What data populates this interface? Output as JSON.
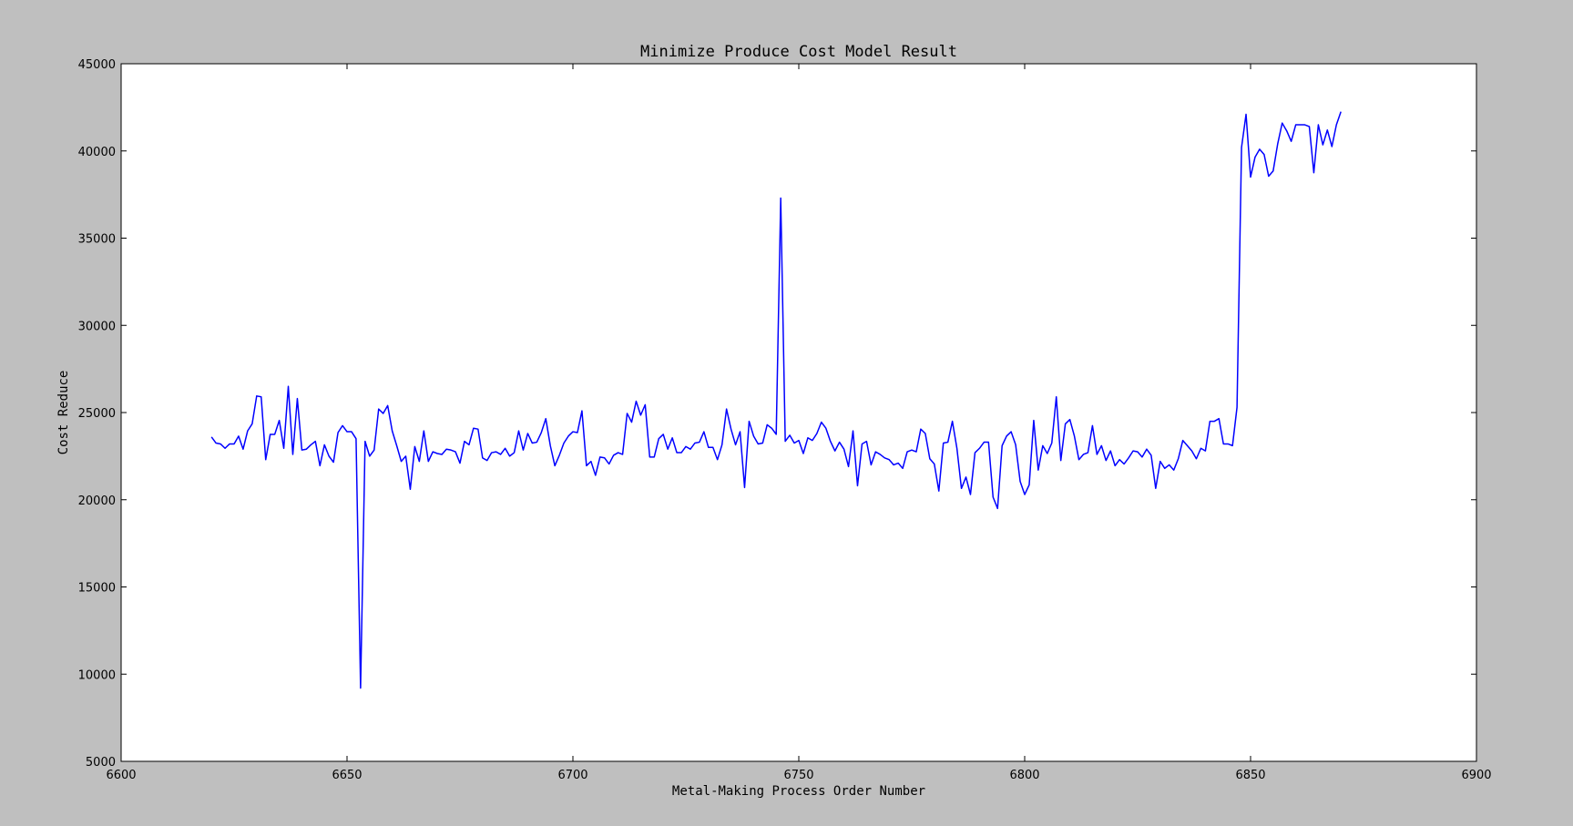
{
  "colors": {
    "figure_background": "#bfbfbf",
    "plot_background": "#ffffff",
    "line": "#0000ff",
    "axes": "#000000"
  },
  "chart_data": {
    "type": "line",
    "title": "Minimize Produce Cost Model Result",
    "xlabel": "Metal-Making Process Order Number",
    "ylabel": "Cost Reduce",
    "xlim": [
      6600,
      6900
    ],
    "ylim": [
      5000,
      45000
    ],
    "xticks": [
      6600,
      6650,
      6700,
      6750,
      6800,
      6850,
      6900
    ],
    "yticks": [
      5000,
      10000,
      15000,
      20000,
      25000,
      30000,
      35000,
      40000,
      45000
    ],
    "xtick_labels": [
      "6600",
      "6650",
      "6700",
      "6750",
      "6800",
      "6850",
      "6900"
    ],
    "ytick_labels": [
      "5000",
      "10000",
      "15000",
      "20000",
      "25000",
      "30000",
      "35000",
      "40000",
      "45000"
    ],
    "grid": false,
    "legend": "none",
    "series": [
      {
        "x_start": 6620,
        "x_step": 1,
        "values": [
          23600,
          23250,
          23200,
          22950,
          23200,
          23200,
          23650,
          22900,
          23950,
          24350,
          25950,
          25900,
          22300,
          23750,
          23750,
          24550,
          22950,
          26500,
          22600,
          25800,
          22850,
          22900,
          23150,
          23350,
          21950,
          23150,
          22500,
          22150,
          23850,
          24250,
          23900,
          23900,
          23500,
          9200,
          23350,
          22500,
          22850,
          25200,
          24950,
          25400,
          23950,
          23100,
          22200,
          22500,
          20600,
          23050,
          22200,
          23950,
          22200,
          22750,
          22650,
          22600,
          22900,
          22850,
          22750,
          22100,
          23350,
          23150,
          24100,
          24050,
          22400,
          22250,
          22700,
          22750,
          22600,
          22950,
          22500,
          22700,
          23950,
          22850,
          23800,
          23250,
          23300,
          23850,
          24650,
          23100,
          21950,
          22550,
          23250,
          23650,
          23900,
          23850,
          25100,
          21950,
          22200,
          21400,
          22450,
          22400,
          22050,
          22550,
          22700,
          22600,
          24950,
          24450,
          25650,
          24850,
          25450,
          22450,
          22450,
          23500,
          23750,
          22900,
          23550,
          22700,
          22700,
          23050,
          22900,
          23250,
          23300,
          23900,
          23000,
          23000,
          22300,
          23150,
          25200,
          24050,
          23150,
          23900,
          20700,
          24500,
          23650,
          23200,
          23250,
          24300,
          24100,
          23750,
          37300,
          23350,
          23700,
          23250,
          23400,
          22650,
          23550,
          23400,
          23800,
          24450,
          24100,
          23350,
          22800,
          23300,
          22900,
          21900,
          23950,
          20800,
          23200,
          23350,
          22000,
          22750,
          22600,
          22400,
          22300,
          22000,
          22100,
          21800,
          22750,
          22850,
          22750,
          24050,
          23800,
          22350,
          22050,
          20500,
          23250,
          23300,
          24500,
          22950,
          20650,
          21300,
          20300,
          22700,
          22950,
          23300,
          23300,
          20150,
          19500,
          23100,
          23650,
          23900,
          23150,
          21050,
          20300,
          20850,
          24550,
          21700,
          23100,
          22650,
          23250,
          25900,
          22250,
          24350,
          24600,
          23650,
          22300,
          22600,
          22700,
          24250,
          22600,
          23100,
          22250,
          22800,
          21950,
          22300,
          22050,
          22400,
          22800,
          22750,
          22450,
          22900,
          22550,
          20650,
          22200,
          21800,
          22000,
          21700,
          22350,
          23400,
          23100,
          22800,
          22350,
          22950,
          22800,
          24500,
          24500,
          24650,
          23200,
          23200,
          23100,
          25300,
          40200,
          42100,
          38500,
          39650,
          40100,
          39800,
          38550,
          38850,
          40400,
          41600,
          41150,
          40550,
          41500,
          41500,
          41500,
          41400,
          38750,
          41500,
          40350,
          41200,
          40250,
          41500,
          42250
        ]
      }
    ]
  }
}
